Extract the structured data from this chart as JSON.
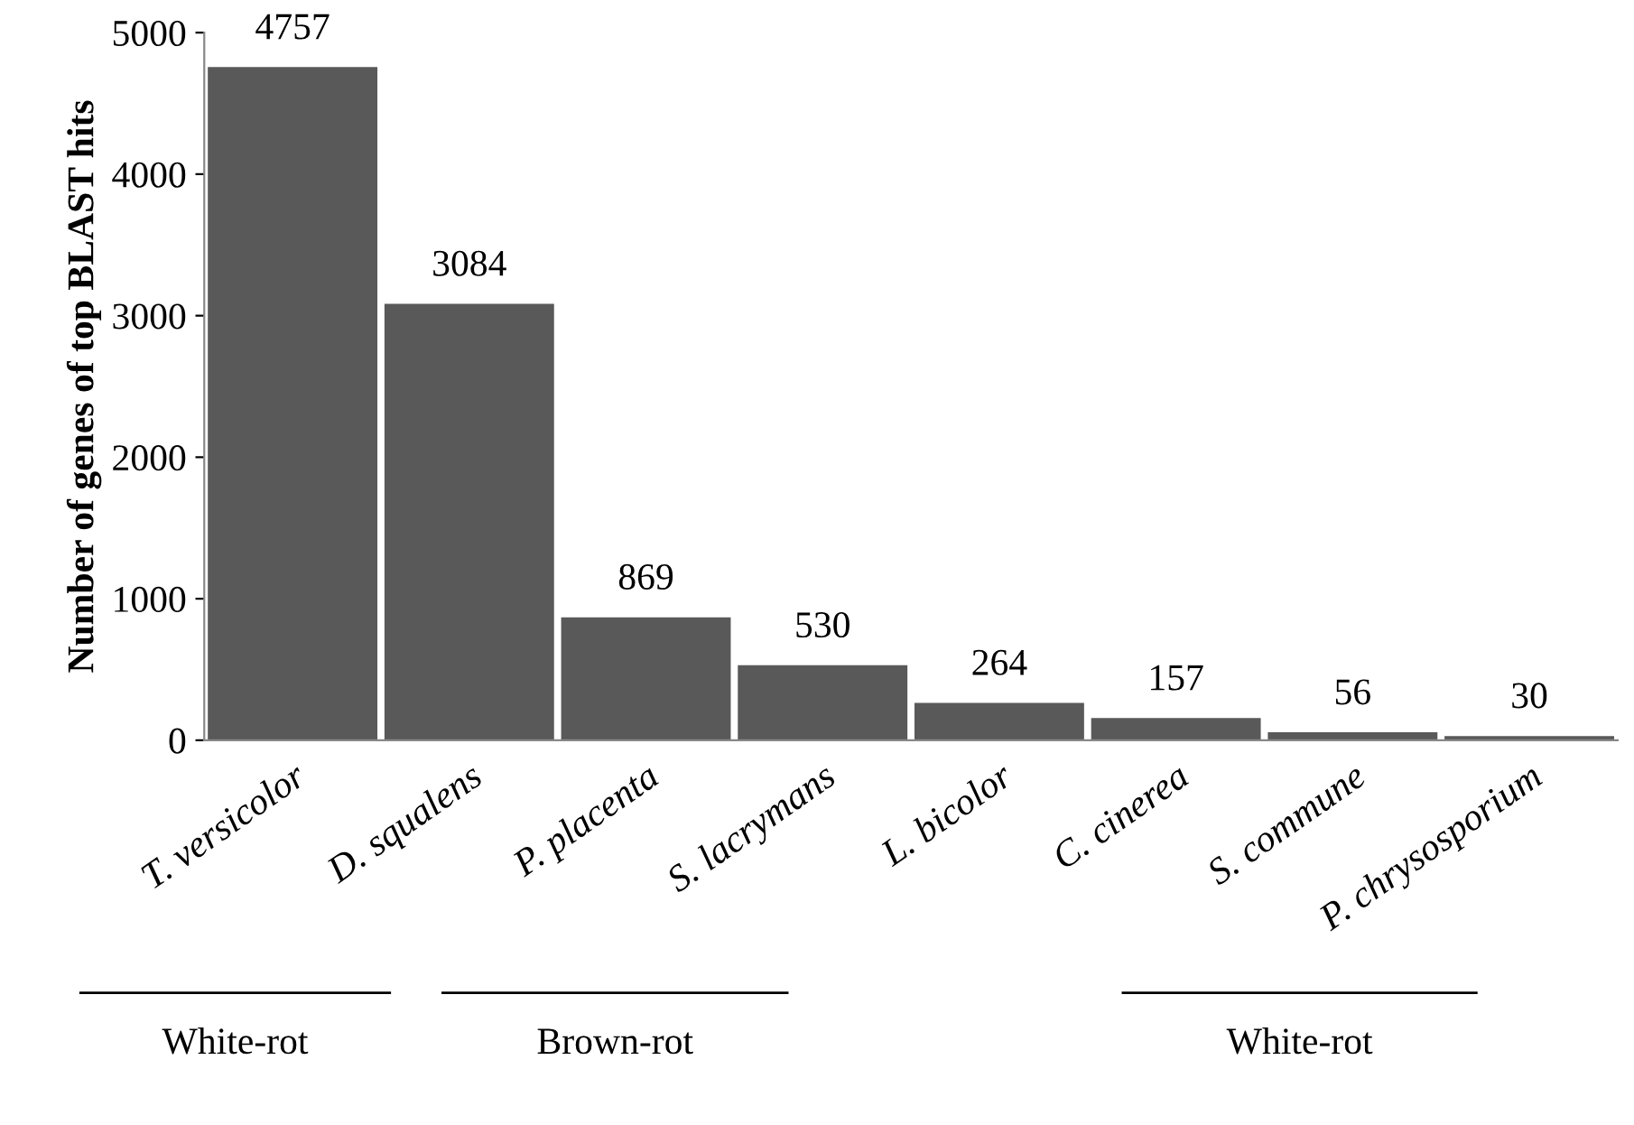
{
  "chart_data": {
    "type": "bar",
    "ylabel": "Number of genes of top BLAST hits",
    "categories": [
      "T. versicolor",
      "D. squalens",
      "P. placenta",
      "S. lacrymans",
      "L. bicolor",
      "C. cinerea",
      "S. commune",
      "P. chrysosporium"
    ],
    "values": [
      4757,
      3084,
      869,
      530,
      264,
      157,
      56,
      30
    ],
    "color": "#595959",
    "ylim": [
      0,
      5000
    ],
    "yticks": [
      0,
      1000,
      2000,
      3000,
      4000,
      5000
    ],
    "grid": false,
    "data_labels": true,
    "annotations": [
      "White-rot",
      "Brown-rot",
      "White-rot"
    ]
  }
}
